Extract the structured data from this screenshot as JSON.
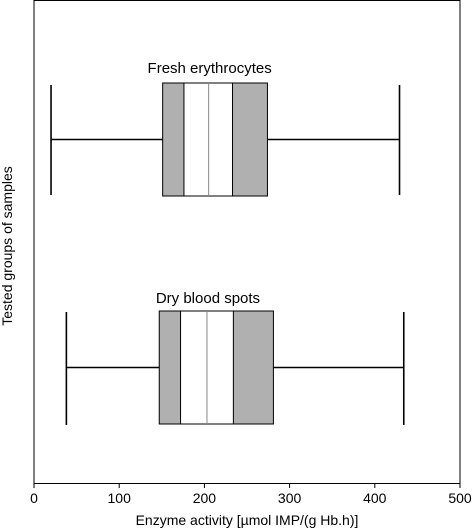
{
  "chart_data": {
    "type": "boxplot",
    "xlabel": "Enzyme activity [µmol IMP/(g Hb.h)]",
    "ylabel": "Tested groups of samples",
    "xlim": [
      0,
      500
    ],
    "xticks": [
      0,
      100,
      200,
      300,
      400,
      500
    ],
    "grid": false,
    "box_colors": {
      "outer": "#b0b0b0",
      "inner": "#ffffff",
      "line": "#000000"
    },
    "groups": [
      {
        "label": "Fresh erythrocytes",
        "whisker_low": 20,
        "q1": 151,
        "p_inner_low": 176,
        "median": 205,
        "p_inner_high": 233,
        "q3": 274,
        "whisker_high": 429
      },
      {
        "label": "Dry blood spots",
        "whisker_low": 38,
        "q1": 147,
        "p_inner_low": 172,
        "median": 203,
        "p_inner_high": 234,
        "q3": 281,
        "whisker_high": 434
      }
    ]
  }
}
